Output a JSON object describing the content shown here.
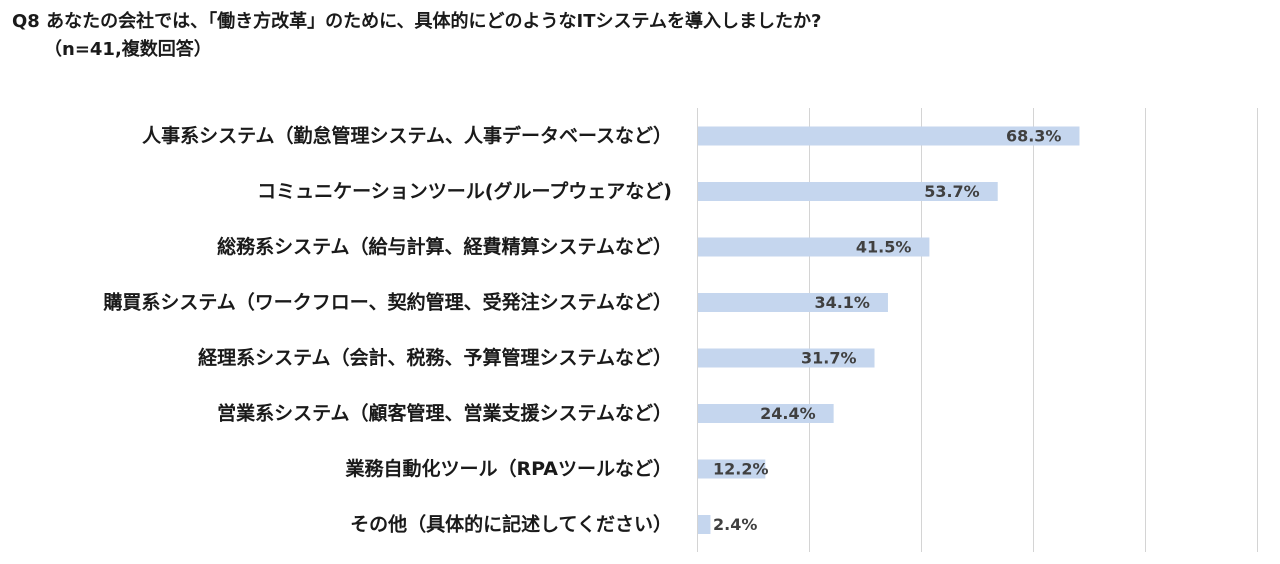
{
  "title": "Q8 あなたの会社では、「働き方改革」のために、具体的にどのようなITシステムを導入しましたか?",
  "subtitle": "（n=41,複数回答）",
  "colors": {
    "bar": "#c5d6ee",
    "grid": "#d4d4d4",
    "label_text": "#404040"
  },
  "chart_data": {
    "type": "bar",
    "orientation": "horizontal",
    "categories": [
      "人事系システム（勤怠管理システム、人事データベースなど）",
      "コミュニケーションツール(グループウェアなど)",
      "総務系システム（給与計算、経費精算システムなど）",
      "購買系システム（ワークフロー、契約管理、受発注システムなど）",
      "経理系システム（会計、税務、予算管理システムなど）",
      "営業系システム（顧客管理、営業支援システムなど）",
      "業務自動化ツール（RPAツールなど）",
      "その他（具体的に記述してください）"
    ],
    "values": [
      68.3,
      53.7,
      41.5,
      34.1,
      31.7,
      24.4,
      12.2,
      2.4
    ],
    "value_labels": [
      "68.3%",
      "53.7%",
      "41.5%",
      "34.1%",
      "31.7%",
      "24.4%",
      "12.2%",
      "2.4%"
    ],
    "xlim": [
      0,
      100
    ],
    "grid": true,
    "legend": false,
    "xlabel": "",
    "ylabel": ""
  }
}
